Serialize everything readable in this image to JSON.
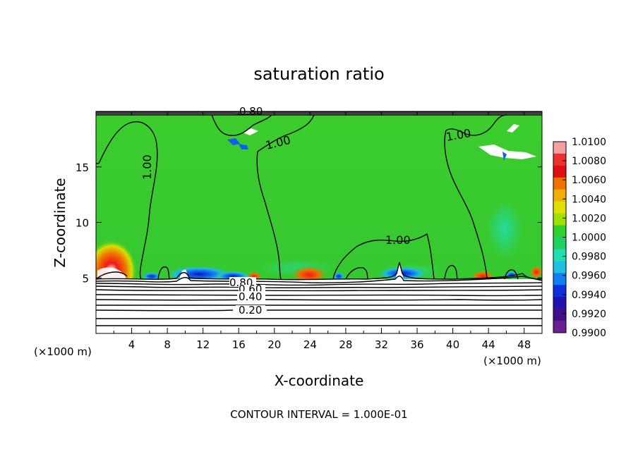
{
  "chart_data": {
    "type": "heatmap",
    "title": "saturation ratio",
    "xlabel": "X-coordinate",
    "ylabel": "Z-coordinate",
    "x_units_left": "(×1000 m)",
    "x_units_right": "(×1000 m)",
    "footer": "CONTOUR INTERVAL = 1.000E-01",
    "xlim": [
      0,
      50
    ],
    "ylim": [
      0,
      20
    ],
    "x_ticks": [
      "4",
      "8",
      "12",
      "16",
      "20",
      "24",
      "28",
      "32",
      "36",
      "40",
      "44",
      "48"
    ],
    "x_tick_values": [
      4,
      8,
      12,
      16,
      20,
      24,
      28,
      32,
      36,
      40,
      44,
      48
    ],
    "y_ticks": [
      "5",
      "10",
      "15"
    ],
    "y_tick_values": [
      5,
      10,
      15
    ],
    "colorbar": {
      "labels": [
        "1.0100",
        "1.0080",
        "1.0060",
        "1.0040",
        "1.0020",
        "1.0000",
        "0.9980",
        "0.9960",
        "0.9940",
        "0.9920",
        "0.9900"
      ],
      "colors": [
        "#f4a0a0",
        "#ee3030",
        "#e01010",
        "#f07000",
        "#f0b000",
        "#e0e000",
        "#a0e000",
        "#30d030",
        "#20d060",
        "#20e0b0",
        "#20c0e0",
        "#1080f0",
        "#1030e0",
        "#2010b0",
        "#40108a",
        "#6a2090"
      ]
    },
    "contour_labels": [
      {
        "text": "0.80",
        "x": 18,
        "z": 19.5
      },
      {
        "text": "1.00",
        "x": 19.5,
        "z": 17.6
      },
      {
        "text": "1.00",
        "x": 42,
        "z": 18.0
      },
      {
        "text": "1.00",
        "x": 6.5,
        "z": 15.0
      },
      {
        "text": "1.00",
        "x": 33,
        "z": 8.5
      },
      {
        "text": "0.80",
        "x": 16,
        "z": 4.7
      },
      {
        "text": "0.60",
        "x": 17,
        "z": 4.1
      },
      {
        "text": "0.40",
        "x": 16.5,
        "z": 3.4
      },
      {
        "text": "0.20",
        "x": 17,
        "z": 2.1
      }
    ]
  }
}
